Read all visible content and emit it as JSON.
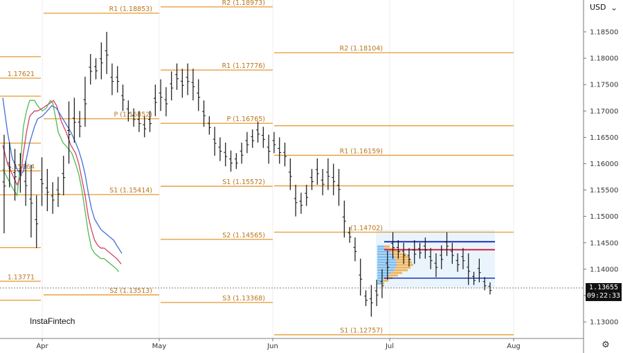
{
  "currency": "USD",
  "watermark": "InstaFintech",
  "last_price": "1.13655",
  "countdown": "09:22:33",
  "colors": {
    "bars": "#111111",
    "sma_fast": "#4cbb4c",
    "sma_mid": "#d0406a",
    "sma_slow": "#3f6fd8",
    "pivot": "#e8a040",
    "vp_blue": "#2a8fe0",
    "vp_orange": "#f2a024"
  },
  "chart_data": {
    "type": "line",
    "instrument": "EURUSD daily (inverted scale)",
    "y_axis": {
      "scale": "inverted",
      "ylim": [
        1.1272,
        1.1877
      ],
      "ticks": [
        "1.18500",
        "1.18000",
        "1.17500",
        "1.17000",
        "1.16500",
        "1.16000",
        "1.15500",
        "1.15000",
        "1.14500",
        "1.14000",
        "1.13500",
        "1.13000"
      ]
    },
    "x_axis": {
      "ticks": [
        "Apr",
        "May",
        "Jun",
        "Jul",
        "Aug"
      ]
    },
    "pivot_levels": [
      {
        "period": "mar",
        "levels": [
          {
            "label": "",
            "value": 1.1803
          },
          {
            "label": "1.17621",
            "value": 1.17621
          },
          {
            "label": "",
            "value": 1.1728
          },
          {
            "label": "",
            "value": 1.1639
          },
          {
            "label": "1.15864",
            "value": 1.15864
          },
          {
            "label": "",
            "value": 1.1541
          },
          {
            "label": "",
            "value": 1.1441
          },
          {
            "label": "1.13771",
            "value": 1.13771
          },
          {
            "label": "",
            "value": 1.1341
          }
        ]
      },
      {
        "period": "apr",
        "levels": [
          {
            "label": "R1 (1.18853)",
            "value": 1.18853
          },
          {
            "label": "P (1.16852)",
            "value": 1.16852
          },
          {
            "label": "S1 (1.15414)",
            "value": 1.15414
          },
          {
            "label": "S2 (1.13513)",
            "value": 1.13513
          }
        ]
      },
      {
        "period": "may",
        "levels": [
          {
            "label": "R2 (1.18973)",
            "value": 1.18973
          },
          {
            "label": "R1 (1.17776)",
            "value": 1.17776
          },
          {
            "label": "P (1.16765)",
            "value": 1.16765
          },
          {
            "label": "S1 (1.15572)",
            "value": 1.15572
          },
          {
            "label": "S2 (1.14565)",
            "value": 1.14565
          },
          {
            "label": "S3 (1.13368)",
            "value": 1.13368
          }
        ]
      },
      {
        "period": "jun",
        "levels": [
          {
            "label": "R2 (1.18104)",
            "value": 1.18104
          },
          {
            "label": "",
            "value": 1.1672
          },
          {
            "label": "R1 (1.16159)",
            "value": 1.16159
          },
          {
            "label": "",
            "value": 1.1558
          },
          {
            "label": "(1.14702)",
            "value": 1.14702
          },
          {
            "label": "S1 (1.12757)",
            "value": 1.12757
          }
        ]
      }
    ],
    "bars": [
      {
        "x": 0.1,
        "high": 1.1655,
        "low": 1.1468
      },
      {
        "x": 0.5,
        "high": 1.164,
        "low": 1.1555
      },
      {
        "x": 0.9,
        "high": 1.1628,
        "low": 1.153
      },
      {
        "x": 1.3,
        "high": 1.162,
        "low": 1.1545
      },
      {
        "x": 1.7,
        "high": 1.1605,
        "low": 1.152
      },
      {
        "x": 2.1,
        "high": 1.1598,
        "low": 1.146
      },
      {
        "x": 2.5,
        "high": 1.154,
        "low": 1.144
      },
      {
        "x": 2.9,
        "high": 1.1612,
        "low": 1.152
      },
      {
        "x": 3.3,
        "high": 1.159,
        "low": 1.151
      },
      {
        "x": 3.7,
        "high": 1.1565,
        "low": 1.1505
      },
      {
        "x": 4.1,
        "high": 1.1575,
        "low": 1.1518
      },
      {
        "x": 4.5,
        "high": 1.1615,
        "low": 1.154
      },
      {
        "x": 4.9,
        "high": 1.1718,
        "low": 1.16
      },
      {
        "x": 5.3,
        "high": 1.1725,
        "low": 1.164
      },
      {
        "x": 5.7,
        "high": 1.17,
        "low": 1.165
      },
      {
        "x": 6.1,
        "high": 1.1765,
        "low": 1.167
      },
      {
        "x": 6.5,
        "high": 1.1808,
        "low": 1.175
      },
      {
        "x": 6.9,
        "high": 1.18,
        "low": 1.176
      },
      {
        "x": 7.3,
        "high": 1.183,
        "low": 1.176
      },
      {
        "x": 7.7,
        "high": 1.185,
        "low": 1.177
      },
      {
        "x": 8.1,
        "high": 1.179,
        "low": 1.173
      },
      {
        "x": 8.5,
        "high": 1.1785,
        "low": 1.1735
      },
      {
        "x": 8.9,
        "high": 1.175,
        "low": 1.17
      },
      {
        "x": 9.3,
        "high": 1.172,
        "low": 1.168
      },
      {
        "x": 9.7,
        "high": 1.1705,
        "low": 1.167
      },
      {
        "x": 10.1,
        "high": 1.17,
        "low": 1.166
      },
      {
        "x": 10.5,
        "high": 1.169,
        "low": 1.165
      },
      {
        "x": 10.9,
        "high": 1.17,
        "low": 1.166
      },
      {
        "x": 11.3,
        "high": 1.175,
        "low": 1.169
      },
      {
        "x": 11.7,
        "high": 1.176,
        "low": 1.17
      },
      {
        "x": 12.1,
        "high": 1.1745,
        "low": 1.169
      },
      {
        "x": 12.5,
        "high": 1.1775,
        "low": 1.172
      },
      {
        "x": 12.9,
        "high": 1.179,
        "low": 1.174
      },
      {
        "x": 13.3,
        "high": 1.178,
        "low": 1.1725
      },
      {
        "x": 13.7,
        "high": 1.179,
        "low": 1.173
      },
      {
        "x": 14.1,
        "high": 1.178,
        "low": 1.172
      },
      {
        "x": 14.5,
        "high": 1.176,
        "low": 1.17
      },
      {
        "x": 14.9,
        "high": 1.172,
        "low": 1.167
      },
      {
        "x": 15.3,
        "high": 1.169,
        "low": 1.1655
      },
      {
        "x": 15.7,
        "high": 1.167,
        "low": 1.1615
      },
      {
        "x": 16.1,
        "high": 1.165,
        "low": 1.1605
      },
      {
        "x": 16.5,
        "high": 1.164,
        "low": 1.1595
      },
      {
        "x": 16.9,
        "high": 1.1625,
        "low": 1.1585
      },
      {
        "x": 17.3,
        "high": 1.162,
        "low": 1.159
      },
      {
        "x": 17.7,
        "high": 1.164,
        "low": 1.16
      },
      {
        "x": 18.1,
        "high": 1.166,
        "low": 1.162
      },
      {
        "x": 18.5,
        "high": 1.1665,
        "low": 1.163
      },
      {
        "x": 18.9,
        "high": 1.168,
        "low": 1.164
      },
      {
        "x": 19.3,
        "high": 1.167,
        "low": 1.163
      },
      {
        "x": 19.7,
        "high": 1.1655,
        "low": 1.16
      },
      {
        "x": 20.1,
        "high": 1.166,
        "low": 1.162
      },
      {
        "x": 20.5,
        "high": 1.165,
        "low": 1.16
      },
      {
        "x": 20.9,
        "high": 1.164,
        "low": 1.1595
      },
      {
        "x": 21.3,
        "high": 1.161,
        "low": 1.155
      },
      {
        "x": 21.7,
        "high": 1.156,
        "low": 1.15
      },
      {
        "x": 22.1,
        "high": 1.1545,
        "low": 1.1505
      },
      {
        "x": 22.5,
        "high": 1.156,
        "low": 1.152
      },
      {
        "x": 22.9,
        "high": 1.159,
        "low": 1.155
      },
      {
        "x": 23.3,
        "high": 1.161,
        "low": 1.156
      },
      {
        "x": 23.7,
        "high": 1.159,
        "low": 1.154
      },
      {
        "x": 24.1,
        "high": 1.161,
        "low": 1.155
      },
      {
        "x": 24.5,
        "high": 1.16,
        "low": 1.154
      },
      {
        "x": 24.9,
        "high": 1.159,
        "low": 1.152
      },
      {
        "x": 25.3,
        "high": 1.153,
        "low": 1.146
      },
      {
        "x": 25.7,
        "high": 1.148,
        "low": 1.145
      },
      {
        "x": 26.1,
        "high": 1.146,
        "low": 1.1415
      },
      {
        "x": 26.5,
        "high": 1.142,
        "low": 1.135
      },
      {
        "x": 26.9,
        "high": 1.136,
        "low": 1.133
      },
      {
        "x": 27.3,
        "high": 1.137,
        "low": 1.131
      },
      {
        "x": 27.7,
        "high": 1.138,
        "low": 1.133
      },
      {
        "x": 28.1,
        "high": 1.14,
        "low": 1.1345
      },
      {
        "x": 28.5,
        "high": 1.1435,
        "low": 1.138
      },
      {
        "x": 28.9,
        "high": 1.147,
        "low": 1.142
      },
      {
        "x": 29.3,
        "high": 1.1455,
        "low": 1.142
      },
      {
        "x": 29.7,
        "high": 1.145,
        "low": 1.141
      },
      {
        "x": 30.1,
        "high": 1.144,
        "low": 1.1405
      },
      {
        "x": 30.5,
        "high": 1.1455,
        "low": 1.141
      },
      {
        "x": 30.9,
        "high": 1.145,
        "low": 1.142
      },
      {
        "x": 31.3,
        "high": 1.146,
        "low": 1.142
      },
      {
        "x": 31.7,
        "high": 1.144,
        "low": 1.14
      },
      {
        "x": 32.1,
        "high": 1.143,
        "low": 1.1385
      },
      {
        "x": 32.5,
        "high": 1.1445,
        "low": 1.14
      },
      {
        "x": 32.9,
        "high": 1.147,
        "low": 1.1425
      },
      {
        "x": 33.3,
        "high": 1.145,
        "low": 1.141
      },
      {
        "x": 33.7,
        "high": 1.143,
        "low": 1.1395
      },
      {
        "x": 34.1,
        "high": 1.144,
        "low": 1.14
      },
      {
        "x": 34.5,
        "high": 1.143,
        "low": 1.137
      },
      {
        "x": 34.9,
        "high": 1.1395,
        "low": 1.137
      },
      {
        "x": 35.3,
        "high": 1.142,
        "low": 1.1375
      },
      {
        "x": 35.7,
        "high": 1.1385,
        "low": 1.136
      },
      {
        "x": 36.1,
        "high": 1.1375,
        "low": 1.1352
      }
    ],
    "series": [
      {
        "values": [
          [
            0.0,
            1.159
          ],
          [
            3.0,
            1.1555
          ],
          [
            4.5,
            1.154
          ],
          [
            5.6,
            1.16
          ],
          [
            6.5,
            1.167
          ],
          [
            7.5,
            1.17
          ],
          [
            8.5,
            1.172
          ],
          [
            10.0,
            1.172
          ],
          [
            11.0,
            1.171
          ],
          [
            12.5,
            1.17
          ],
          [
            13.7,
            1.1705
          ],
          [
            15.0,
            1.172
          ],
          [
            15.8,
            1.1715
          ],
          [
            16.6,
            1.169
          ],
          [
            17.5,
            1.166
          ],
          [
            19.0,
            1.164
          ],
          [
            20.5,
            1.163
          ],
          [
            21.8,
            1.162
          ],
          [
            23.0,
            1.16
          ],
          [
            24.0,
            1.158
          ],
          [
            25.0,
            1.155
          ],
          [
            26.0,
            1.151
          ],
          [
            27.0,
            1.147
          ],
          [
            28.0,
            1.144
          ],
          [
            29.0,
            1.143
          ],
          [
            30.0,
            1.1425
          ],
          [
            31.0,
            1.142
          ],
          [
            32.0,
            1.142
          ],
          [
            33.0,
            1.1415
          ],
          [
            34.0,
            1.141
          ],
          [
            35.0,
            1.1405
          ],
          [
            36.0,
            1.14
          ],
          [
            36.6,
            1.1395
          ]
        ]
      },
      {
        "values": [
          [
            0.0,
            1.1635
          ],
          [
            1.5,
            1.16
          ],
          [
            3.0,
            1.158
          ],
          [
            4.5,
            1.156
          ],
          [
            5.6,
            1.1575
          ],
          [
            6.5,
            1.162
          ],
          [
            7.5,
            1.166
          ],
          [
            8.5,
            1.169
          ],
          [
            10.0,
            1.17
          ],
          [
            11.0,
            1.17
          ],
          [
            12.5,
            1.1705
          ],
          [
            13.7,
            1.171
          ],
          [
            15.0,
            1.1715
          ],
          [
            16.0,
            1.172
          ],
          [
            17.0,
            1.171
          ],
          [
            18.5,
            1.168
          ],
          [
            20.0,
            1.166
          ],
          [
            21.5,
            1.1635
          ],
          [
            23.0,
            1.162
          ],
          [
            24.0,
            1.16
          ],
          [
            25.0,
            1.157
          ],
          [
            26.0,
            1.154
          ],
          [
            27.0,
            1.15
          ],
          [
            28.0,
            1.1475
          ],
          [
            29.0,
            1.1455
          ],
          [
            30.0,
            1.1445
          ],
          [
            31.0,
            1.144
          ],
          [
            32.0,
            1.144
          ],
          [
            33.0,
            1.1435
          ],
          [
            34.0,
            1.143
          ],
          [
            35.0,
            1.1425
          ],
          [
            36.0,
            1.142
          ],
          [
            37.4,
            1.141
          ]
        ]
      },
      {
        "values": [
          [
            0.0,
            1.1725
          ],
          [
            1.5,
            1.166
          ],
          [
            3.0,
            1.161
          ],
          [
            4.5,
            1.159
          ],
          [
            5.6,
            1.158
          ],
          [
            6.5,
            1.1585
          ],
          [
            7.5,
            1.161
          ],
          [
            8.5,
            1.164
          ],
          [
            10.0,
            1.167
          ],
          [
            11.0,
            1.1685
          ],
          [
            12.5,
            1.169
          ],
          [
            14.0,
            1.17
          ],
          [
            15.5,
            1.171
          ],
          [
            17.0,
            1.1705
          ],
          [
            18.5,
            1.169
          ],
          [
            20.0,
            1.1675
          ],
          [
            21.5,
            1.166
          ],
          [
            23.0,
            1.164
          ],
          [
            24.0,
            1.1625
          ],
          [
            25.0,
            1.1605
          ],
          [
            26.0,
            1.158
          ],
          [
            27.0,
            1.1545
          ],
          [
            28.0,
            1.1515
          ],
          [
            29.0,
            1.1495
          ],
          [
            30.0,
            1.1485
          ],
          [
            31.0,
            1.1475
          ],
          [
            32.0,
            1.147
          ],
          [
            33.0,
            1.1465
          ],
          [
            34.0,
            1.146
          ],
          [
            35.0,
            1.1455
          ],
          [
            36.0,
            1.1445
          ],
          [
            37.6,
            1.143
          ]
        ]
      }
    ]
  }
}
